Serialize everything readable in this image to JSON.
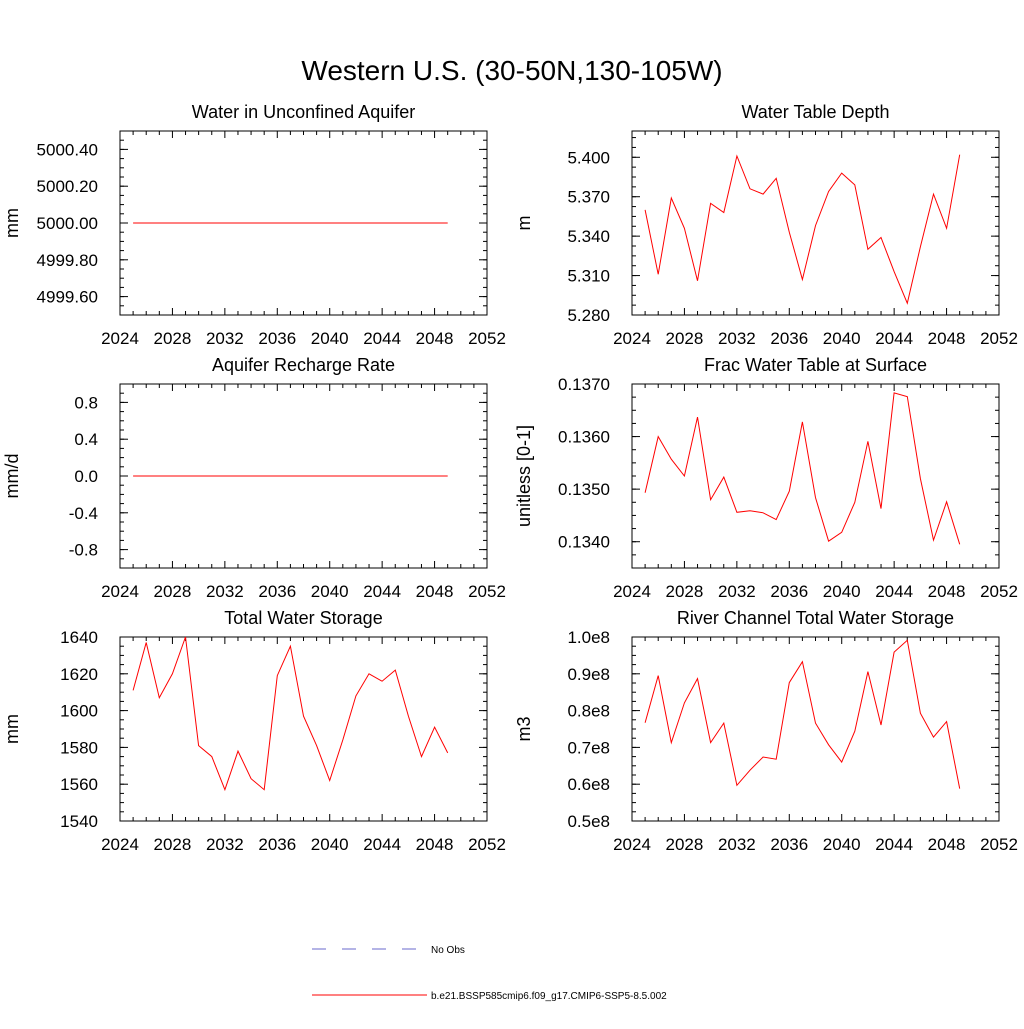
{
  "figure": {
    "title": "Western U.S. (30-50N,130-105W)",
    "line_color": "#ff0000",
    "obs_color": "#6a6acd"
  },
  "legend": {
    "obs_label": "No Obs",
    "model_label": "b.e21.BSSP585cmip6.f09_g17.CMIP6-SSP5-8.5.002"
  },
  "chart_data": [
    {
      "type": "line",
      "title": "Water in Unconfined Aquifer",
      "ylabel": "mm",
      "xlim": [
        2024,
        2052
      ],
      "ylim": [
        4999.5,
        5000.5
      ],
      "xticks": [
        "2024",
        "2028",
        "2032",
        "2036",
        "2040",
        "2044",
        "2048",
        "2052"
      ],
      "yticks": [
        4999.6,
        4999.8,
        5000.0,
        5000.2,
        5000.4
      ],
      "yticklabels": [
        "4999.60",
        "4999.80",
        "5000.00",
        "5000.20",
        "5000.40"
      ],
      "x": [
        2025,
        2026,
        2027,
        2028,
        2029,
        2030,
        2031,
        2032,
        2033,
        2034,
        2035,
        2036,
        2037,
        2038,
        2039,
        2040,
        2041,
        2042,
        2043,
        2044,
        2045,
        2046,
        2047,
        2048,
        2049
      ],
      "series": [
        {
          "values": [
            5000,
            5000,
            5000,
            5000,
            5000,
            5000,
            5000,
            5000,
            5000,
            5000,
            5000,
            5000,
            5000,
            5000,
            5000,
            5000,
            5000,
            5000,
            5000,
            5000,
            5000,
            5000,
            5000,
            5000,
            5000
          ]
        }
      ]
    },
    {
      "type": "line",
      "title": "Water Table Depth",
      "ylabel": "m",
      "xlim": [
        2024,
        2052
      ],
      "ylim": [
        5.28,
        5.42
      ],
      "xticks": [
        "2024",
        "2028",
        "2032",
        "2036",
        "2040",
        "2044",
        "2048",
        "2052"
      ],
      "yticks": [
        5.28,
        5.31,
        5.34,
        5.37,
        5.4
      ],
      "yticklabels": [
        "5.280",
        "5.310",
        "5.340",
        "5.370",
        "5.400"
      ],
      "x": [
        2025,
        2026,
        2027,
        2028,
        2029,
        2030,
        2031,
        2032,
        2033,
        2034,
        2035,
        2036,
        2037,
        2038,
        2039,
        2040,
        2041,
        2042,
        2043,
        2044,
        2045,
        2046,
        2047,
        2048,
        2049
      ],
      "series": [
        {
          "values": [
            5.36,
            5.311,
            5.369,
            5.346,
            5.306,
            5.365,
            5.358,
            5.401,
            5.376,
            5.372,
            5.384,
            5.343,
            5.307,
            5.348,
            5.374,
            5.388,
            5.379,
            5.33,
            5.339,
            5.313,
            5.289,
            5.332,
            5.372,
            5.346,
            5.402
          ]
        }
      ]
    },
    {
      "type": "line",
      "title": "Aquifer Recharge Rate",
      "ylabel": "mm/d",
      "xlim": [
        2024,
        2052
      ],
      "ylim": [
        -1.0,
        1.0
      ],
      "xticks": [
        "2024",
        "2028",
        "2032",
        "2036",
        "2040",
        "2044",
        "2048",
        "2052"
      ],
      "yticks": [
        -0.8,
        -0.4,
        0.0,
        0.4,
        0.8
      ],
      "yticklabels": [
        "-0.8",
        "-0.4",
        "0.0",
        "0.4",
        "0.8"
      ],
      "x": [
        2025,
        2026,
        2027,
        2028,
        2029,
        2030,
        2031,
        2032,
        2033,
        2034,
        2035,
        2036,
        2037,
        2038,
        2039,
        2040,
        2041,
        2042,
        2043,
        2044,
        2045,
        2046,
        2047,
        2048,
        2049
      ],
      "series": [
        {
          "values": [
            0,
            0,
            0,
            0,
            0,
            0,
            0,
            0,
            0,
            0,
            0,
            0,
            0,
            0,
            0,
            0,
            0,
            0,
            0,
            0,
            0,
            0,
            0,
            0,
            0
          ]
        }
      ]
    },
    {
      "type": "line",
      "title": "Frac Water Table at Surface",
      "ylabel": "unitless [0-1]",
      "xlim": [
        2024,
        2052
      ],
      "ylim": [
        0.1335,
        0.137
      ],
      "xticks": [
        "2024",
        "2028",
        "2032",
        "2036",
        "2040",
        "2044",
        "2048",
        "2052"
      ],
      "yticks": [
        0.134,
        0.135,
        0.136,
        0.137
      ],
      "yticklabels": [
        "0.1340",
        "0.1350",
        "0.1360",
        "0.1370"
      ],
      "x": [
        2025,
        2026,
        2027,
        2028,
        2029,
        2030,
        2031,
        2032,
        2033,
        2034,
        2035,
        2036,
        2037,
        2038,
        2039,
        2040,
        2041,
        2042,
        2043,
        2044,
        2045,
        2046,
        2047,
        2048,
        2049
      ],
      "series": [
        {
          "values": [
            0.13493,
            0.136,
            0.13557,
            0.13525,
            0.13637,
            0.1348,
            0.13523,
            0.13456,
            0.13459,
            0.13455,
            0.13442,
            0.13496,
            0.13628,
            0.13484,
            0.13401,
            0.13418,
            0.13475,
            0.13591,
            0.13463,
            0.13683,
            0.13676,
            0.1352,
            0.13403,
            0.13476,
            0.13395
          ]
        }
      ]
    },
    {
      "type": "line",
      "title": "Total Water Storage",
      "ylabel": "mm",
      "xlim": [
        2024,
        2052
      ],
      "ylim": [
        1540,
        1640
      ],
      "xticks": [
        "2024",
        "2028",
        "2032",
        "2036",
        "2040",
        "2044",
        "2048",
        "2052"
      ],
      "yticks": [
        1540,
        1560,
        1580,
        1600,
        1620,
        1640
      ],
      "yticklabels": [
        "1540",
        "1560",
        "1580",
        "1600",
        "1620",
        "1640"
      ],
      "x": [
        2025,
        2026,
        2027,
        2028,
        2029,
        2030,
        2031,
        2032,
        2033,
        2034,
        2035,
        2036,
        2037,
        2038,
        2039,
        2040,
        2041,
        2042,
        2043,
        2044,
        2045,
        2046,
        2047,
        2048,
        2049
      ],
      "series": [
        {
          "values": [
            1611,
            1637,
            1607,
            1620,
            1640,
            1581,
            1575,
            1557,
            1578,
            1563,
            1557,
            1619,
            1635,
            1597,
            1581,
            1562,
            1584,
            1608,
            1620,
            1616,
            1622,
            1597,
            1575,
            1591,
            1577
          ]
        }
      ]
    },
    {
      "type": "line",
      "title": "River Channel Total Water Storage",
      "ylabel": "m3",
      "xlim": [
        2024,
        2052
      ],
      "ylim": [
        0.5,
        1.0
      ],
      "xticks": [
        "2024",
        "2028",
        "2032",
        "2036",
        "2040",
        "2044",
        "2048",
        "2052"
      ],
      "yticks": [
        0.5,
        0.6,
        0.7,
        0.8,
        0.9,
        1.0
      ],
      "yticklabels": [
        "0.5e8",
        "0.6e8",
        "0.7e8",
        "0.8e8",
        "0.9e8",
        "1.0e8"
      ],
      "x": [
        2025,
        2026,
        2027,
        2028,
        2029,
        2030,
        2031,
        2032,
        2033,
        2034,
        2035,
        2036,
        2037,
        2038,
        2039,
        2040,
        2041,
        2042,
        2043,
        2044,
        2045,
        2046,
        2047,
        2048,
        2049
      ],
      "series": [
        {
          "values": [
            0.767,
            0.895,
            0.713,
            0.821,
            0.887,
            0.713,
            0.766,
            0.597,
            0.638,
            0.674,
            0.668,
            0.876,
            0.933,
            0.766,
            0.707,
            0.66,
            0.744,
            0.906,
            0.761,
            0.959,
            0.991,
            0.793,
            0.728,
            0.77,
            0.588
          ]
        }
      ]
    }
  ]
}
